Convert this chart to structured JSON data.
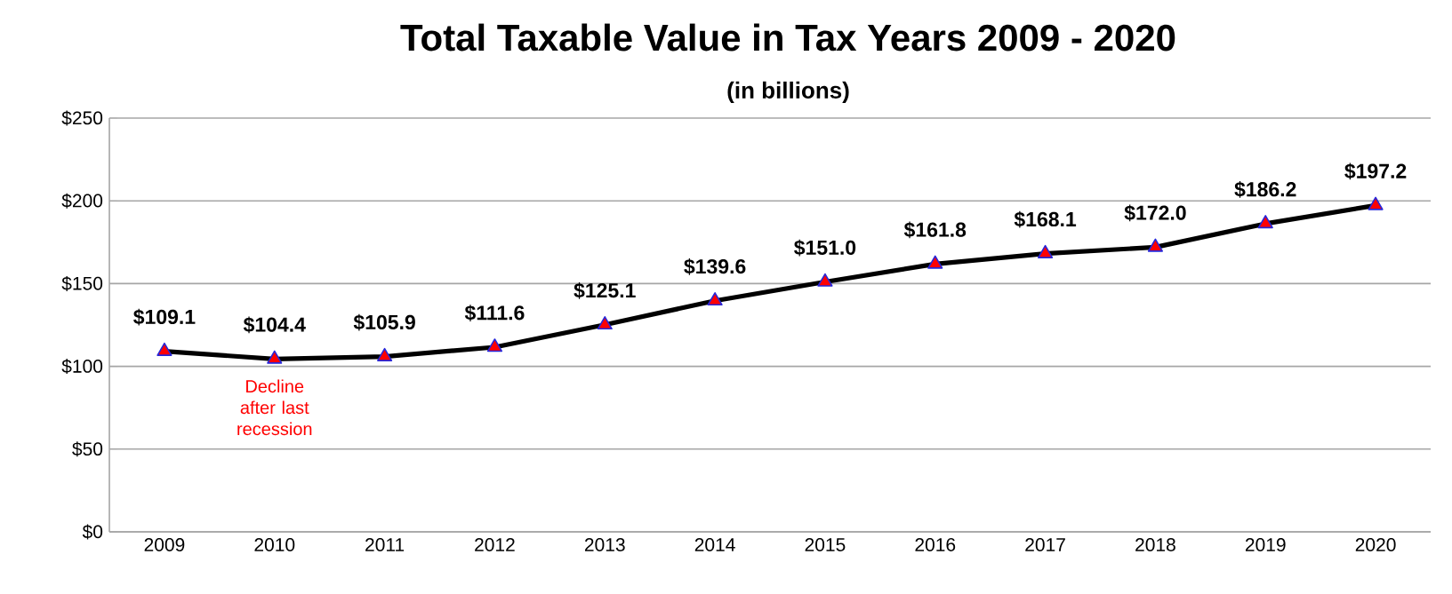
{
  "chart_data": {
    "type": "line",
    "title": "Total Taxable Value in Tax Years 2009 - 2020",
    "subtitle": "(in billions)",
    "categories": [
      "2009",
      "2010",
      "2011",
      "2012",
      "2013",
      "2014",
      "2015",
      "2016",
      "2017",
      "2018",
      "2019",
      "2020"
    ],
    "values": [
      109.1,
      104.4,
      105.9,
      111.6,
      125.1,
      139.6,
      151.0,
      161.8,
      168.1,
      172.0,
      186.2,
      197.2
    ],
    "value_labels": [
      "$109.1",
      "$104.4",
      "$105.9",
      "$111.6",
      "$125.1",
      "$139.6",
      "$151.0",
      "$161.8",
      "$168.1",
      "$172.0",
      "$186.2",
      "$197.2"
    ],
    "color": "#000000",
    "marker": "triangle",
    "line_style": "solid",
    "grid": "y",
    "ylim": [
      0,
      250
    ],
    "yticks": [
      {
        "value": 0,
        "label": "$0"
      },
      {
        "value": 50,
        "label": "$50"
      },
      {
        "value": 100,
        "label": "$100"
      },
      {
        "value": 150,
        "label": "$150"
      },
      {
        "value": 200,
        "label": "$200"
      },
      {
        "value": 250,
        "label": "$250"
      }
    ],
    "annotations": [
      {
        "text": "Decline after last recession",
        "x": "2010",
        "y": 104.4
      }
    ]
  }
}
